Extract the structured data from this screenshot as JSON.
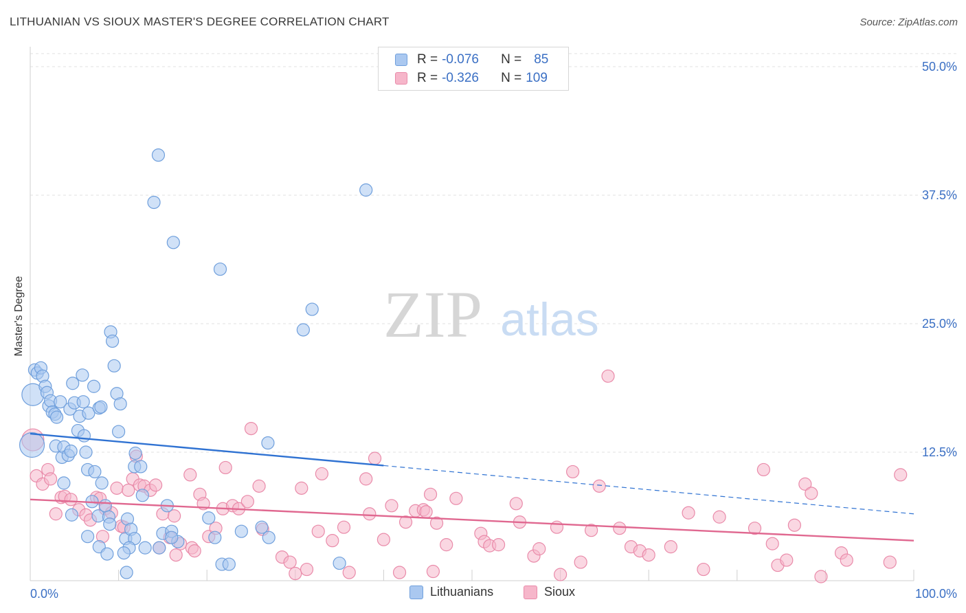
{
  "title": "LITHUANIAN VS SIOUX MASTER'S DEGREE CORRELATION CHART",
  "source": "Source: ZipAtlas.com",
  "watermark": {
    "zip": "ZIP",
    "atlas": "atlas"
  },
  "legend": {
    "rows": [
      {
        "r_label": "R = ",
        "r_value": "-0.076",
        "n_label": "N = ",
        "n_value": "85"
      },
      {
        "r_label": "R = ",
        "r_value": "-0.326",
        "n_label": "N = ",
        "n_value": "109"
      }
    ]
  },
  "colors": {
    "blue_fill": "#aac8f0",
    "blue_stroke": "#6f9fdc",
    "blue_line": "#2f72d2",
    "pink_fill": "#f6b6ca",
    "pink_stroke": "#e98aa9",
    "pink_line": "#e06890",
    "axis_text": "#3a6fc4",
    "grid": "#e2e2e2"
  },
  "chart_data": {
    "type": "scatter",
    "title": "LITHUANIAN VS SIOUX MASTER'S DEGREE CORRELATION CHART",
    "xlabel": "",
    "ylabel": "Master's Degree",
    "xlim": [
      0,
      100
    ],
    "ylim": [
      0,
      52
    ],
    "x_tick_labels": [
      "0.0%",
      "100.0%"
    ],
    "y_ticks": [
      12.5,
      25.0,
      37.5,
      50.0
    ],
    "y_tick_labels": [
      "12.5%",
      "25.0%",
      "37.5%",
      "50.0%"
    ],
    "series": [
      {
        "name": "Lithuanians",
        "color": "blue",
        "r": -0.076,
        "n": 85,
        "trend": {
          "x0": 0,
          "y0": 14.3,
          "x1": 40,
          "y1": 11.2,
          "dashed_to_x": 100,
          "dashed_y1": 6.5
        },
        "points": [
          [
            0.3,
            18.1,
            16
          ],
          [
            0.2,
            13.2,
            18
          ],
          [
            0.5,
            20.5,
            9
          ],
          [
            0.8,
            20.2,
            9
          ],
          [
            1.2,
            20.7,
            9
          ],
          [
            1.4,
            19.9,
            9
          ],
          [
            1.7,
            18.9,
            9
          ],
          [
            1.9,
            18.3,
            9
          ],
          [
            2.1,
            17.0,
            9
          ],
          [
            2.3,
            17.5,
            9
          ],
          [
            2.5,
            16.4,
            9
          ],
          [
            2.8,
            16.2,
            9
          ],
          [
            3.0,
            15.9,
            9
          ],
          [
            3.4,
            17.4,
            9
          ],
          [
            2.9,
            13.1,
            9
          ],
          [
            3.6,
            12.0,
            9
          ],
          [
            3.8,
            13.0,
            9
          ],
          [
            4.3,
            12.2,
            9
          ],
          [
            4.6,
            12.6,
            9
          ],
          [
            3.8,
            9.5,
            9
          ],
          [
            4.5,
            16.7,
            9
          ],
          [
            5.0,
            17.3,
            9
          ],
          [
            5.6,
            16.0,
            9
          ],
          [
            6.0,
            17.4,
            9
          ],
          [
            6.3,
            12.5,
            9
          ],
          [
            5.4,
            14.6,
            9
          ],
          [
            6.1,
            14.1,
            9
          ],
          [
            5.9,
            20.0,
            9
          ],
          [
            4.8,
            19.2,
            9
          ],
          [
            7.2,
            18.9,
            9
          ],
          [
            6.6,
            16.3,
            9
          ],
          [
            7.8,
            16.8,
            9
          ],
          [
            8.0,
            16.9,
            9
          ],
          [
            6.5,
            10.8,
            9
          ],
          [
            7.3,
            10.6,
            9
          ],
          [
            8.1,
            9.5,
            9
          ],
          [
            7.0,
            7.7,
            9
          ],
          [
            8.5,
            7.3,
            9
          ],
          [
            4.7,
            6.4,
            9
          ],
          [
            7.7,
            6.3,
            9
          ],
          [
            8.9,
            6.2,
            9
          ],
          [
            6.5,
            4.3,
            9
          ],
          [
            7.8,
            3.3,
            9
          ],
          [
            8.7,
            2.6,
            9
          ],
          [
            9.1,
            24.2,
            9
          ],
          [
            9.3,
            23.3,
            9
          ],
          [
            9.5,
            20.9,
            9
          ],
          [
            9.8,
            18.2,
            9
          ],
          [
            10.2,
            17.2,
            9
          ],
          [
            10.0,
            14.5,
            9
          ],
          [
            11.0,
            6.0,
            9
          ],
          [
            10.8,
            4.1,
            9
          ],
          [
            11.4,
            5.0,
            9
          ],
          [
            11.8,
            4.1,
            9
          ],
          [
            11.2,
            3.2,
            9
          ],
          [
            10.6,
            2.7,
            9
          ],
          [
            11.9,
            12.4,
            9
          ],
          [
            12.7,
            8.3,
            9
          ],
          [
            11.8,
            11.1,
            9
          ],
          [
            12.5,
            11.1,
            9
          ],
          [
            10.9,
            0.8,
            9
          ],
          [
            14.5,
            41.4,
            9
          ],
          [
            14.0,
            36.8,
            9
          ],
          [
            16.2,
            32.9,
            9
          ],
          [
            15.5,
            7.3,
            9
          ],
          [
            15.0,
            4.6,
            9
          ],
          [
            16.0,
            4.8,
            9
          ],
          [
            16.7,
            3.8,
            9
          ],
          [
            14.6,
            3.2,
            9
          ],
          [
            21.5,
            30.3,
            9
          ],
          [
            20.2,
            6.1,
            9
          ],
          [
            20.9,
            4.2,
            9
          ],
          [
            21.7,
            1.6,
            9
          ],
          [
            22.5,
            1.6,
            9
          ],
          [
            23.9,
            4.8,
            9
          ],
          [
            27.0,
            4.2,
            9
          ],
          [
            26.2,
            5.2,
            9
          ],
          [
            26.9,
            13.4,
            9
          ],
          [
            31.9,
            26.4,
            9
          ],
          [
            30.9,
            24.4,
            9
          ],
          [
            38.0,
            38.0,
            9
          ],
          [
            35.0,
            1.7,
            9
          ],
          [
            16.0,
            4.2,
            9
          ],
          [
            13.0,
            3.2,
            9
          ],
          [
            9.0,
            5.5,
            9
          ]
        ]
      },
      {
        "name": "Sioux",
        "color": "pink",
        "r": -0.326,
        "n": 109,
        "trend": {
          "x0": 0,
          "y0": 7.9,
          "x1": 100,
          "y1": 3.9
        },
        "points": [
          [
            0.3,
            13.7,
            16
          ],
          [
            0.7,
            10.2,
            9
          ],
          [
            1.4,
            9.4,
            9
          ],
          [
            2.0,
            10.8,
            9
          ],
          [
            2.3,
            9.9,
            9
          ],
          [
            2.9,
            6.5,
            9
          ],
          [
            3.5,
            8.1,
            9
          ],
          [
            3.9,
            8.2,
            9
          ],
          [
            4.6,
            7.9,
            9
          ],
          [
            5.5,
            6.9,
            9
          ],
          [
            6.3,
            6.4,
            9
          ],
          [
            6.8,
            5.9,
            9
          ],
          [
            7.5,
            8.1,
            9
          ],
          [
            7.9,
            8.0,
            9
          ],
          [
            8.2,
            4.3,
            9
          ],
          [
            8.5,
            7.0,
            9
          ],
          [
            9.2,
            6.6,
            9
          ],
          [
            9.8,
            9.0,
            9
          ],
          [
            10.3,
            5.3,
            9
          ],
          [
            10.6,
            5.2,
            9
          ],
          [
            11.1,
            8.8,
            9
          ],
          [
            11.6,
            9.9,
            9
          ],
          [
            12.0,
            12.1,
            9
          ],
          [
            12.4,
            9.3,
            9
          ],
          [
            12.9,
            9.2,
            9
          ],
          [
            13.6,
            8.8,
            9
          ],
          [
            14.2,
            9.3,
            9
          ],
          [
            14.6,
            3.2,
            9
          ],
          [
            15.0,
            6.5,
            9
          ],
          [
            15.8,
            4.2,
            9
          ],
          [
            16.3,
            6.3,
            9
          ],
          [
            16.5,
            2.5,
            9
          ],
          [
            17.0,
            3.6,
            9
          ],
          [
            18.3,
            3.2,
            9
          ],
          [
            18.1,
            10.3,
            9
          ],
          [
            19.2,
            8.4,
            9
          ],
          [
            19.6,
            7.5,
            9
          ],
          [
            20.2,
            4.3,
            9
          ],
          [
            21.0,
            5.1,
            9
          ],
          [
            21.8,
            7.0,
            9
          ],
          [
            22.1,
            11.0,
            9
          ],
          [
            22.9,
            7.3,
            9
          ],
          [
            23.6,
            7.0,
            9
          ],
          [
            24.6,
            7.7,
            9
          ],
          [
            25.0,
            14.8,
            9
          ],
          [
            26.3,
            5.0,
            9
          ],
          [
            25.9,
            9.2,
            9
          ],
          [
            28.5,
            2.3,
            9
          ],
          [
            29.4,
            1.8,
            9
          ],
          [
            30.0,
            0.7,
            9
          ],
          [
            30.7,
            9.0,
            9
          ],
          [
            31.3,
            1.1,
            9
          ],
          [
            32.6,
            4.8,
            9
          ],
          [
            33.0,
            10.4,
            9
          ],
          [
            34.2,
            3.9,
            9
          ],
          [
            35.5,
            5.2,
            9
          ],
          [
            36.1,
            0.8,
            9
          ],
          [
            38.4,
            6.5,
            9
          ],
          [
            38.0,
            9.9,
            9
          ],
          [
            39.0,
            11.9,
            9
          ],
          [
            40.0,
            4.0,
            9
          ],
          [
            40.9,
            7.3,
            9
          ],
          [
            41.8,
            0.8,
            9
          ],
          [
            42.5,
            5.7,
            9
          ],
          [
            43.6,
            6.8,
            9
          ],
          [
            44.5,
            6.9,
            9
          ],
          [
            44.8,
            6.7,
            9
          ],
          [
            45.3,
            8.4,
            9
          ],
          [
            45.6,
            0.9,
            9
          ],
          [
            46.0,
            5.6,
            9
          ],
          [
            47.1,
            3.5,
            9
          ],
          [
            48.2,
            8.0,
            9
          ],
          [
            51.0,
            4.6,
            9
          ],
          [
            51.4,
            3.8,
            9
          ],
          [
            52.0,
            3.4,
            9
          ],
          [
            53.0,
            3.5,
            9
          ],
          [
            55.0,
            7.5,
            9
          ],
          [
            55.4,
            5.7,
            9
          ],
          [
            57.0,
            2.4,
            9
          ],
          [
            57.6,
            3.1,
            9
          ],
          [
            59.6,
            5.2,
            9
          ],
          [
            60.0,
            0.6,
            9
          ],
          [
            61.4,
            10.6,
            9
          ],
          [
            62.3,
            1.8,
            9
          ],
          [
            63.5,
            4.9,
            9
          ],
          [
            64.4,
            9.2,
            9
          ],
          [
            65.4,
            19.9,
            9
          ],
          [
            66.7,
            5.1,
            9
          ],
          [
            68.0,
            3.3,
            9
          ],
          [
            69.0,
            2.9,
            9
          ],
          [
            70.0,
            2.5,
            9
          ],
          [
            72.5,
            3.3,
            9
          ],
          [
            74.5,
            6.6,
            9
          ],
          [
            76.2,
            1.1,
            9
          ],
          [
            78.0,
            6.2,
            9
          ],
          [
            82.0,
            5.1,
            9
          ],
          [
            83.0,
            10.8,
            9
          ],
          [
            84.0,
            3.6,
            9
          ],
          [
            84.6,
            1.5,
            9
          ],
          [
            85.6,
            2.0,
            9
          ],
          [
            86.5,
            5.4,
            9
          ],
          [
            87.7,
            9.4,
            9
          ],
          [
            88.4,
            8.5,
            9
          ],
          [
            89.5,
            0.4,
            9
          ],
          [
            91.8,
            2.7,
            9
          ],
          [
            92.4,
            2.0,
            9
          ],
          [
            97.3,
            1.8,
            9
          ],
          [
            98.5,
            10.3,
            9
          ],
          [
            18.6,
            2.9,
            9
          ]
        ]
      }
    ]
  },
  "bottom_legend": [
    {
      "label": "Lithuanians"
    },
    {
      "label": "Sioux"
    }
  ]
}
